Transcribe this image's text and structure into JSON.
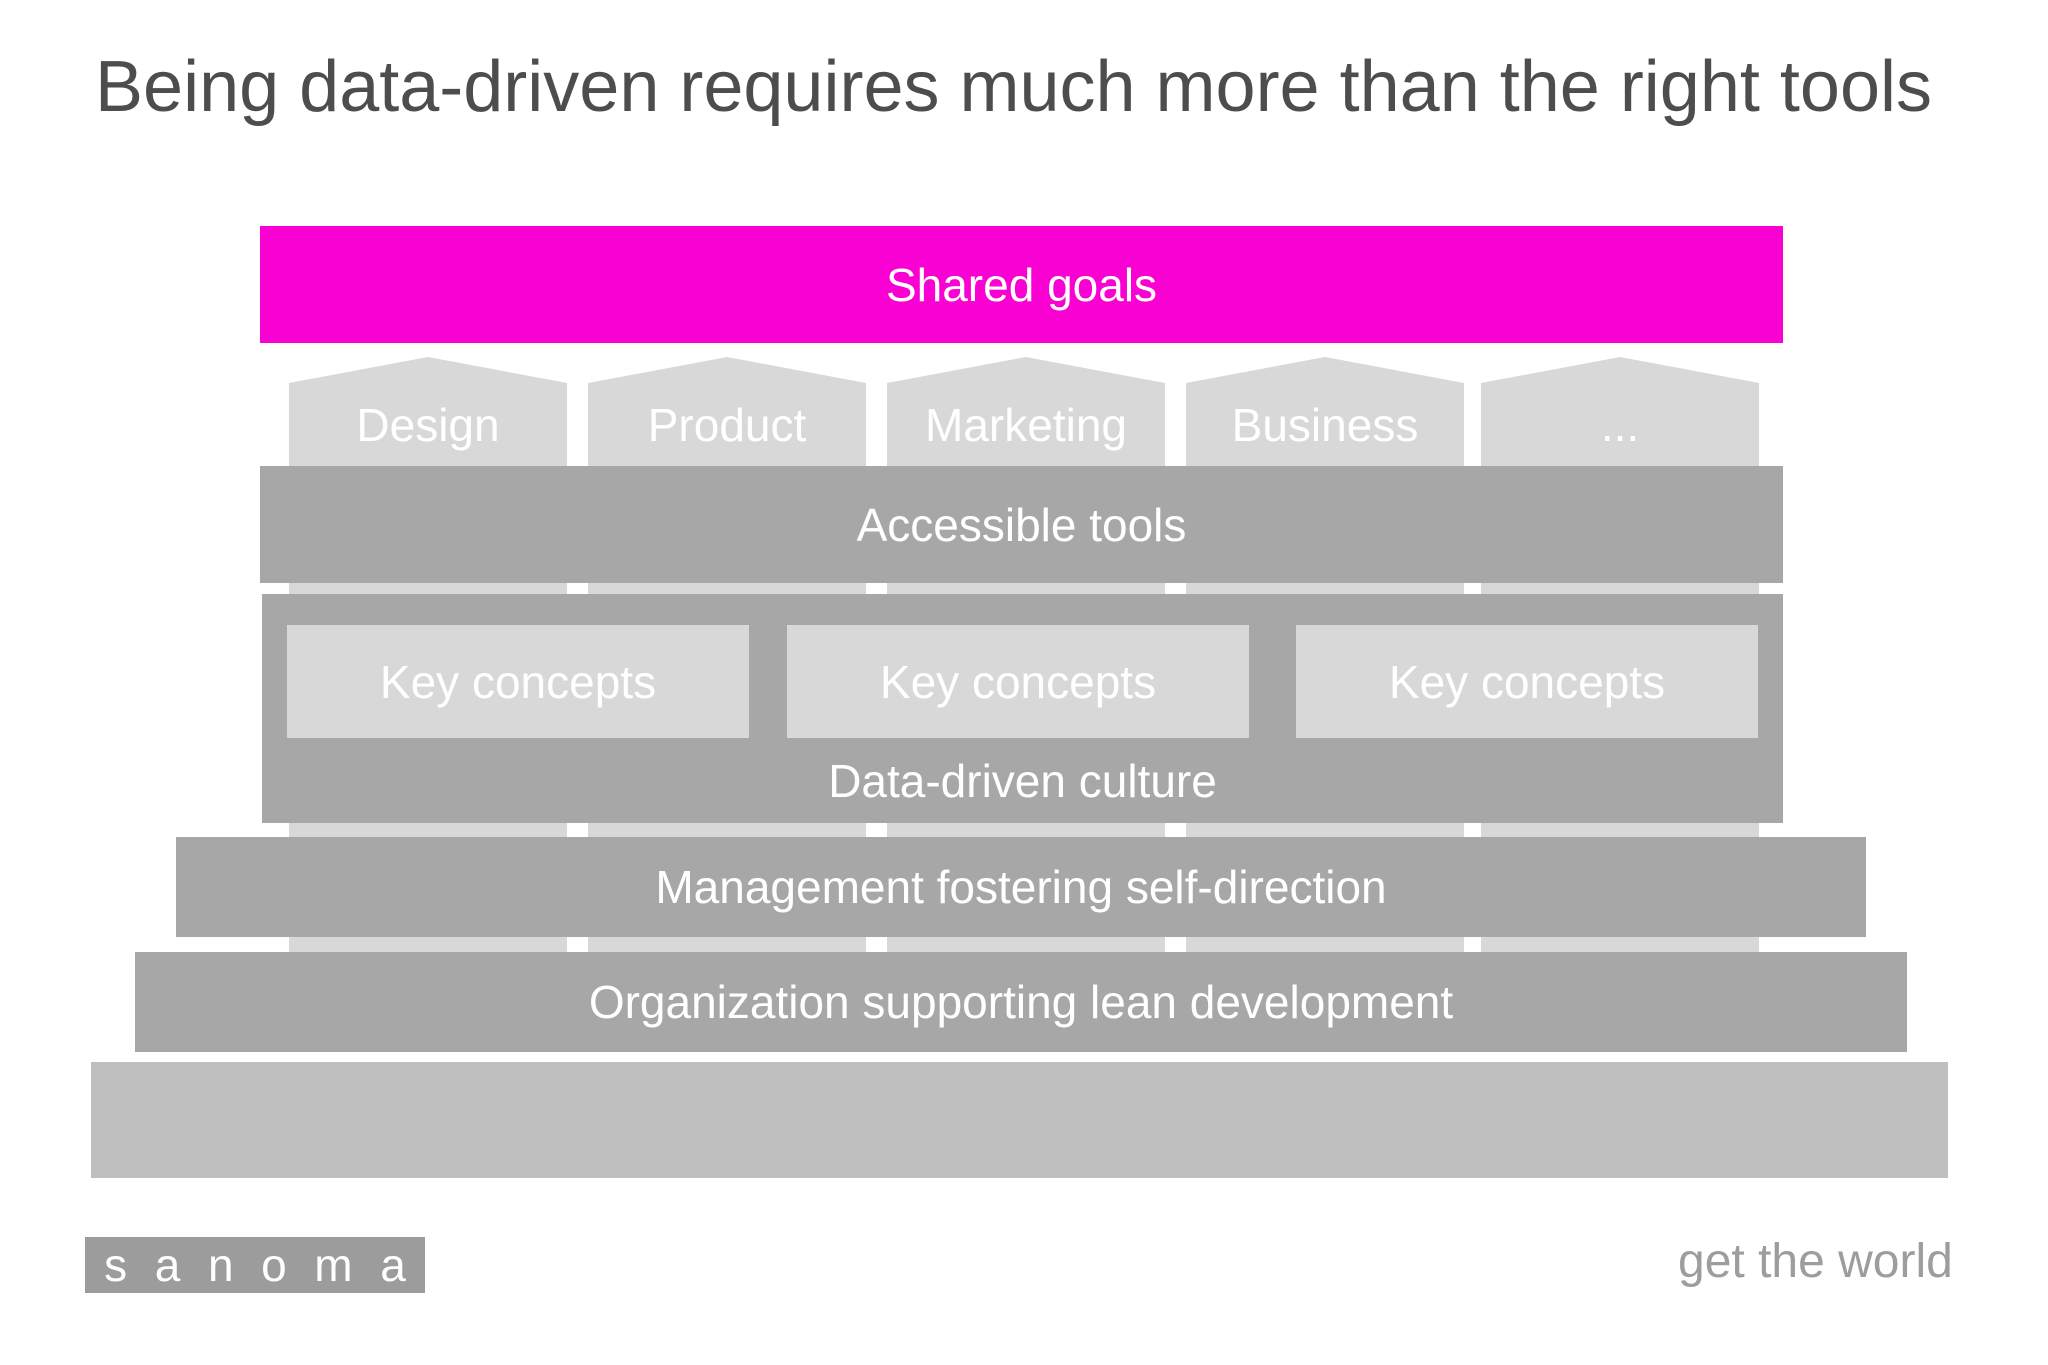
{
  "title": "Being data-driven requires much more than the right tools",
  "colors": {
    "accent": "#F900D3",
    "bar": "#A7A7A7",
    "pillar": "#D8D8D8",
    "base": "#BFBFBF",
    "logo_bg": "#9C9C9C",
    "title_text": "#4D4D4D",
    "tagline_text": "#9D9D9D",
    "label_text": "#FFFFFF"
  },
  "diagram": {
    "shared_goals": "Shared goals",
    "pillars": [
      "Design",
      "Product",
      "Marketing",
      "Business",
      "..."
    ],
    "accessible_tools": "Accessible tools",
    "key_concepts": [
      "Key concepts",
      "Key concepts",
      "Key concepts"
    ],
    "culture": "Data-driven culture",
    "management": "Management fostering self-direction",
    "organization": "Organization supporting lean development"
  },
  "footer": {
    "logo": "sanoma",
    "tagline": "get the world"
  }
}
